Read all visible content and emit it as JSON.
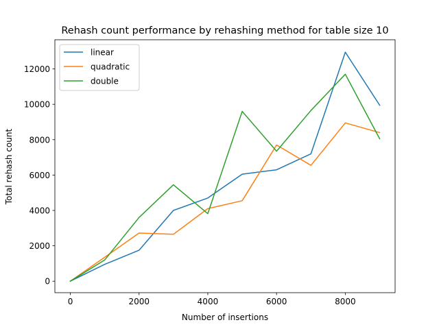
{
  "chart_data": {
    "type": "line",
    "title": "Rehash count performance by rehashing method for table size 10",
    "xlabel": "Number of insertions",
    "ylabel": "Total rehash count",
    "x": [
      0,
      1000,
      2000,
      3000,
      4000,
      5000,
      6000,
      7000,
      8000,
      9000
    ],
    "xlim": [
      -450,
      9450
    ],
    "ylim": [
      -650,
      13650
    ],
    "xticks": [
      0,
      2000,
      4000,
      6000,
      8000
    ],
    "yticks": [
      0,
      2000,
      4000,
      6000,
      8000,
      10000,
      12000
    ],
    "grid": false,
    "legend_position": "upper-left",
    "series": [
      {
        "name": "linear",
        "color": "#1f77b4",
        "values": [
          0,
          950,
          1750,
          4000,
          4700,
          6050,
          6300,
          7200,
          12950,
          9950
        ]
      },
      {
        "name": "quadratic",
        "color": "#ff7f0e",
        "values": [
          0,
          1350,
          2720,
          2650,
          4100,
          4550,
          7700,
          6550,
          8950,
          8400
        ]
      },
      {
        "name": "double",
        "color": "#2ca02c",
        "values": [
          0,
          1200,
          3600,
          5450,
          3820,
          9600,
          7350,
          9650,
          11700,
          8050
        ]
      }
    ]
  }
}
